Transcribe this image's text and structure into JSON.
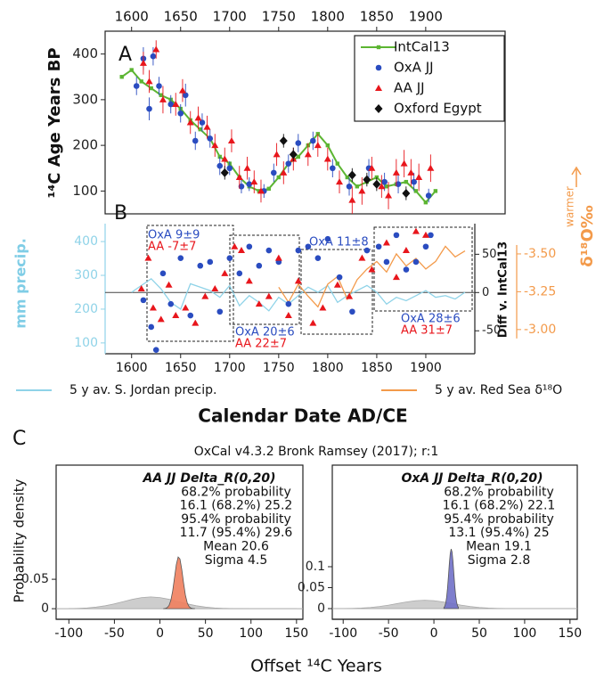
{
  "chart_data": [
    {
      "type": "scatter",
      "panel_label": "A",
      "ylabel": "¹⁴C Age Years BP",
      "xaxis_position": "top",
      "legend": "upper right",
      "xlim": [
        1573,
        1981
      ],
      "xticks": [
        1600,
        1650,
        1700,
        1750,
        1800,
        1850,
        1900
      ],
      "ylim": [
        50,
        450
      ],
      "yticks": [
        100,
        200,
        300,
        400
      ],
      "series": [
        {
          "name": "IntCal13",
          "color": "#5cb532",
          "style": "line-square",
          "x": [
            1590,
            1600,
            1610,
            1620,
            1630,
            1640,
            1650,
            1660,
            1670,
            1680,
            1690,
            1700,
            1710,
            1720,
            1730,
            1740,
            1750,
            1760,
            1770,
            1780,
            1790,
            1800,
            1810,
            1820,
            1830,
            1840,
            1850,
            1860,
            1870,
            1880,
            1890,
            1900,
            1910
          ],
          "values": [
            350,
            365,
            340,
            325,
            310,
            300,
            280,
            255,
            235,
            215,
            175,
            160,
            130,
            110,
            100,
            105,
            130,
            160,
            175,
            200,
            225,
            200,
            160,
            130,
            110,
            120,
            130,
            110,
            115,
            120,
            100,
            75,
            100
          ]
        },
        {
          "name": "OxA JJ",
          "color": "#2a4cc0",
          "style": "circle",
          "x": [
            1605,
            1612,
            1618,
            1622,
            1628,
            1640,
            1650,
            1655,
            1665,
            1672,
            1680,
            1690,
            1700,
            1712,
            1720,
            1735,
            1745,
            1760,
            1770,
            1785,
            1805,
            1822,
            1842,
            1858,
            1872,
            1888,
            1903
          ],
          "values": [
            330,
            390,
            280,
            395,
            330,
            290,
            270,
            310,
            210,
            250,
            215,
            155,
            150,
            110,
            115,
            100,
            140,
            160,
            205,
            210,
            150,
            110,
            150,
            120,
            115,
            120,
            90
          ],
          "errors": [
            20,
            25,
            25,
            20,
            20,
            20,
            20,
            25,
            20,
            20,
            20,
            20,
            15,
            15,
            15,
            15,
            20,
            20,
            20,
            20,
            20,
            20,
            20,
            20,
            20,
            20,
            15
          ]
        },
        {
          "name": "AA JJ",
          "color": "#e8161c",
          "style": "triangle",
          "x": [
            1612,
            1618,
            1625,
            1632,
            1645,
            1652,
            1660,
            1668,
            1677,
            1685,
            1695,
            1702,
            1710,
            1718,
            1725,
            1732,
            1748,
            1755,
            1765,
            1780,
            1790,
            1800,
            1812,
            1825,
            1835,
            1845,
            1855,
            1862,
            1870,
            1878,
            1885,
            1893,
            1905
          ],
          "values": [
            380,
            340,
            410,
            300,
            290,
            320,
            250,
            260,
            240,
            200,
            170,
            210,
            130,
            150,
            120,
            100,
            180,
            140,
            170,
            180,
            200,
            170,
            120,
            80,
            100,
            150,
            110,
            90,
            140,
            160,
            140,
            130,
            150
          ],
          "errors": [
            25,
            25,
            20,
            30,
            25,
            25,
            25,
            25,
            25,
            25,
            25,
            25,
            25,
            25,
            25,
            25,
            25,
            25,
            25,
            25,
            25,
            25,
            25,
            30,
            30,
            25,
            25,
            30,
            30,
            30,
            30,
            30,
            30
          ]
        },
        {
          "name": "Oxford Egypt",
          "color": "#111111",
          "style": "diamond",
          "x": [
            1695,
            1755,
            1765,
            1825,
            1840,
            1850,
            1880
          ],
          "values": [
            140,
            210,
            180,
            135,
            125,
            115,
            95
          ],
          "errors": [
            15,
            15,
            15,
            15,
            15,
            15,
            15
          ]
        }
      ]
    },
    {
      "type": "scatter",
      "panel_label": "B",
      "xlabel": "Calendar Date AD/CE",
      "xaxis_position": "bottom",
      "legend": "below",
      "ylabel": "Diff v. IntCal13",
      "y2label": "mm precip.",
      "y3label": "δ¹⁸O‰",
      "y3note": "warmer",
      "annotations": [
        "OxA 9±9",
        "AA  -7±7",
        "OxA 20±6",
        "AA   22±7",
        "OxA 11±8",
        "OxA 28±6",
        "AA    31±7"
      ],
      "xlim": [
        1573,
        1950
      ],
      "xticks": [
        1600,
        1650,
        1700,
        1750,
        1800,
        1850,
        1900
      ],
      "ylim": [
        -80,
        90
      ],
      "yticks": [
        -50,
        0,
        50
      ],
      "y2lim": [
        68,
        453
      ],
      "y2ticks": [
        100,
        200,
        300,
        400
      ],
      "y3lim": [
        -2.84,
        -3.7
      ],
      "y3ticks": [
        {
          "value": -3.5,
          "label": "-3.50"
        },
        {
          "value": -3.25,
          "label": "-3.25"
        },
        {
          "value": -3,
          "label": "-3.00"
        }
      ],
      "series": [
        {
          "name": "5 y av. S. Jordan precip.",
          "color": "#8fd3e8",
          "style": "line",
          "axis": "y2",
          "x": [
            1600,
            1610,
            1620,
            1630,
            1640,
            1650,
            1660,
            1670,
            1680,
            1690,
            1700,
            1710,
            1720,
            1730,
            1740,
            1750,
            1760,
            1770,
            1780,
            1790,
            1800,
            1810,
            1820,
            1830,
            1840,
            1850,
            1860,
            1870,
            1880,
            1890,
            1900,
            1910,
            1920,
            1930,
            1940
          ],
          "values": [
            250,
            270,
            290,
            260,
            220,
            200,
            275,
            265,
            255,
            235,
            270,
            210,
            240,
            220,
            195,
            235,
            215,
            240,
            265,
            250,
            270,
            220,
            240,
            255,
            270,
            250,
            215,
            235,
            225,
            240,
            255,
            235,
            240,
            230,
            250
          ]
        },
        {
          "name": "5 y av. Red Sea δ¹⁸O",
          "color": "#f39a4a",
          "style": "line",
          "axis": "y3",
          "x": [
            1750,
            1760,
            1770,
            1780,
            1790,
            1800,
            1810,
            1820,
            1830,
            1840,
            1850,
            1860,
            1870,
            1880,
            1890,
            1900,
            1910,
            1920,
            1930,
            1940
          ],
          "values": [
            -3.28,
            -3.18,
            -3.3,
            -3.22,
            -3.15,
            -3.3,
            -3.35,
            -3.2,
            -3.33,
            -3.4,
            -3.45,
            -3.38,
            -3.5,
            -3.42,
            -3.47,
            -3.4,
            -3.45,
            -3.55,
            -3.48,
            -3.52
          ]
        },
        {
          "color": "#2a4cc0",
          "style": "circle",
          "x": [
            1612,
            1620,
            1625,
            1632,
            1640,
            1650,
            1660,
            1670,
            1680,
            1690,
            1700,
            1710,
            1720,
            1730,
            1740,
            1750,
            1760,
            1770,
            1780,
            1790,
            1800,
            1812,
            1825,
            1840,
            1852,
            1860,
            1870,
            1880,
            1890,
            1900,
            1905
          ],
          "values": [
            -10,
            -45,
            -75,
            25,
            -15,
            45,
            -30,
            35,
            40,
            -25,
            45,
            25,
            60,
            35,
            55,
            40,
            -15,
            55,
            60,
            45,
            70,
            20,
            -25,
            55,
            60,
            40,
            75,
            30,
            40,
            60,
            75
          ]
        },
        {
          "color": "#e8161c",
          "style": "triangle",
          "x": [
            1610,
            1617,
            1622,
            1630,
            1638,
            1645,
            1655,
            1665,
            1675,
            1685,
            1695,
            1705,
            1712,
            1720,
            1730,
            1740,
            1750,
            1760,
            1770,
            1785,
            1795,
            1810,
            1822,
            1835,
            1845,
            1860,
            1870,
            1880,
            1890,
            1900
          ],
          "values": [
            5,
            45,
            -20,
            -35,
            10,
            -30,
            -20,
            -40,
            -5,
            5,
            25,
            60,
            55,
            15,
            -15,
            -5,
            45,
            -30,
            15,
            -40,
            -20,
            10,
            -5,
            45,
            30,
            65,
            20,
            55,
            80,
            75
          ]
        }
      ]
    },
    {
      "type": "density",
      "panel_label": "C",
      "title": "OxCal v4.3.2 Bronk Ramsey (2017); r:1",
      "ylabel": "Probability density",
      "xlabel": "Offset ¹⁴C Years",
      "text_lines": [
        "AA JJ Delta_R(0,20)",
        "68.2% probability",
        "16.1 (68.2%) 25.2",
        "95.4% probability",
        "11.7 (95.4%) 29.6",
        "Mean 20.6",
        "Sigma 4.5"
      ],
      "xlim": [
        -114,
        157
      ],
      "xticks": [
        -100,
        -50,
        0,
        50,
        100,
        150
      ],
      "ylim": [
        -0.018,
        0.244
      ],
      "yticks": [
        0,
        0.05
      ],
      "series": [
        {
          "color": "#c8c8c8",
          "x": [
            -100,
            -90,
            -80,
            -70,
            -60,
            -50,
            -40,
            -30,
            -20,
            -10,
            0,
            10,
            20,
            30,
            40,
            50,
            60,
            70,
            80,
            90,
            100,
            110,
            120,
            130,
            140,
            150
          ],
          "values": [
            0.0002,
            0.0006,
            0.0013,
            0.0027,
            0.005,
            0.0082,
            0.0121,
            0.016,
            0.0189,
            0.02,
            0.0189,
            0.016,
            0.0121,
            0.0082,
            0.005,
            0.0027,
            0.0013,
            0.0006,
            0.0002,
            0.0001,
            0,
            0,
            0,
            0,
            0,
            0
          ]
        },
        {
          "color": "#ef7f5e",
          "x": [
            4,
            6,
            8,
            10,
            12,
            14,
            16,
            18,
            20,
            22,
            24,
            26,
            28,
            30,
            32,
            34,
            36,
            38
          ],
          "values": [
            0.0001,
            0.0005,
            0.0018,
            0.0055,
            0.0143,
            0.0302,
            0.0526,
            0.075,
            0.0879,
            0.0845,
            0.0666,
            0.0432,
            0.0229,
            0.01,
            0.0036,
            0.0011,
            0.0003,
            0.0001
          ]
        }
      ]
    },
    {
      "type": "density",
      "text_lines": [
        "OxA JJ Delta_R(0,20)",
        "68.2% probability",
        "16.1 (68.2%) 22.1",
        "95.4% probability",
        "13.1 (95.4%) 25",
        "Mean 19.1",
        "Sigma 2.8"
      ],
      "xlim": [
        -112,
        158
      ],
      "xticks": [
        -100,
        -50,
        0,
        50,
        100,
        150
      ],
      "ylim": [
        -0.0255,
        0.3425
      ],
      "yticks": [
        0,
        0.05,
        0.1
      ],
      "series": [
        {
          "color": "#c8c8c8",
          "x": [
            -100,
            -90,
            -80,
            -70,
            -60,
            -50,
            -40,
            -30,
            -20,
            -10,
            0,
            10,
            20,
            30,
            40,
            50,
            60,
            70,
            80,
            90,
            100,
            110,
            120,
            130,
            140,
            150
          ],
          "values": [
            0.0002,
            0.0006,
            0.0013,
            0.0027,
            0.005,
            0.0082,
            0.0121,
            0.016,
            0.0189,
            0.02,
            0.0189,
            0.016,
            0.0121,
            0.0082,
            0.005,
            0.0027,
            0.0013,
            0.0006,
            0.0002,
            0.0001,
            0,
            0,
            0,
            0,
            0,
            0
          ]
        },
        {
          "color": "#7070c8",
          "x": [
            11,
            12,
            13,
            14,
            15,
            16,
            17,
            18,
            19,
            20,
            21,
            22,
            23,
            24,
            25,
            26,
            27
          ],
          "values": [
            0.0022,
            0.0057,
            0.0133,
            0.0271,
            0.0488,
            0.0772,
            0.1076,
            0.1319,
            0.1424,
            0.1353,
            0.1132,
            0.0834,
            0.054,
            0.0308,
            0.0155,
            0.0068,
            0.0027
          ]
        }
      ]
    }
  ]
}
